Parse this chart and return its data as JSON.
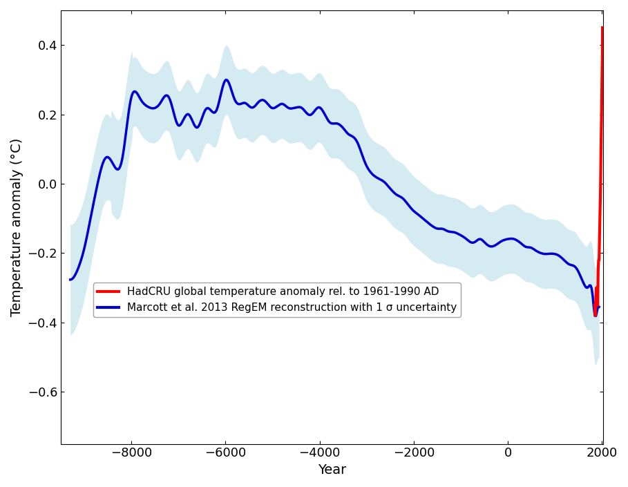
{
  "title": "",
  "xlabel": "Year",
  "ylabel": "Temperature anomaly (°C)",
  "xlim": [
    -9500,
    2020
  ],
  "ylim": [
    -0.75,
    0.5
  ],
  "yticks": [
    -0.6,
    -0.4,
    -0.2,
    0.0,
    0.2,
    0.4
  ],
  "xticks": [
    -8000,
    -6000,
    -4000,
    -2000,
    0,
    2000
  ],
  "blue_color": "#0000CD",
  "red_color": "#FF0000",
  "shade_color": "#ADD8E6",
  "shade_alpha": 0.5,
  "legend_labels": [
    "HadCRU global temperature anomaly rel. to 1961-1990 AD",
    "Marcott et al. 2013 RegEM reconstruction with 1 σ uncertainty"
  ],
  "legend_colors": [
    "#FF0000",
    "#0000CD"
  ],
  "line_width": 2.5
}
